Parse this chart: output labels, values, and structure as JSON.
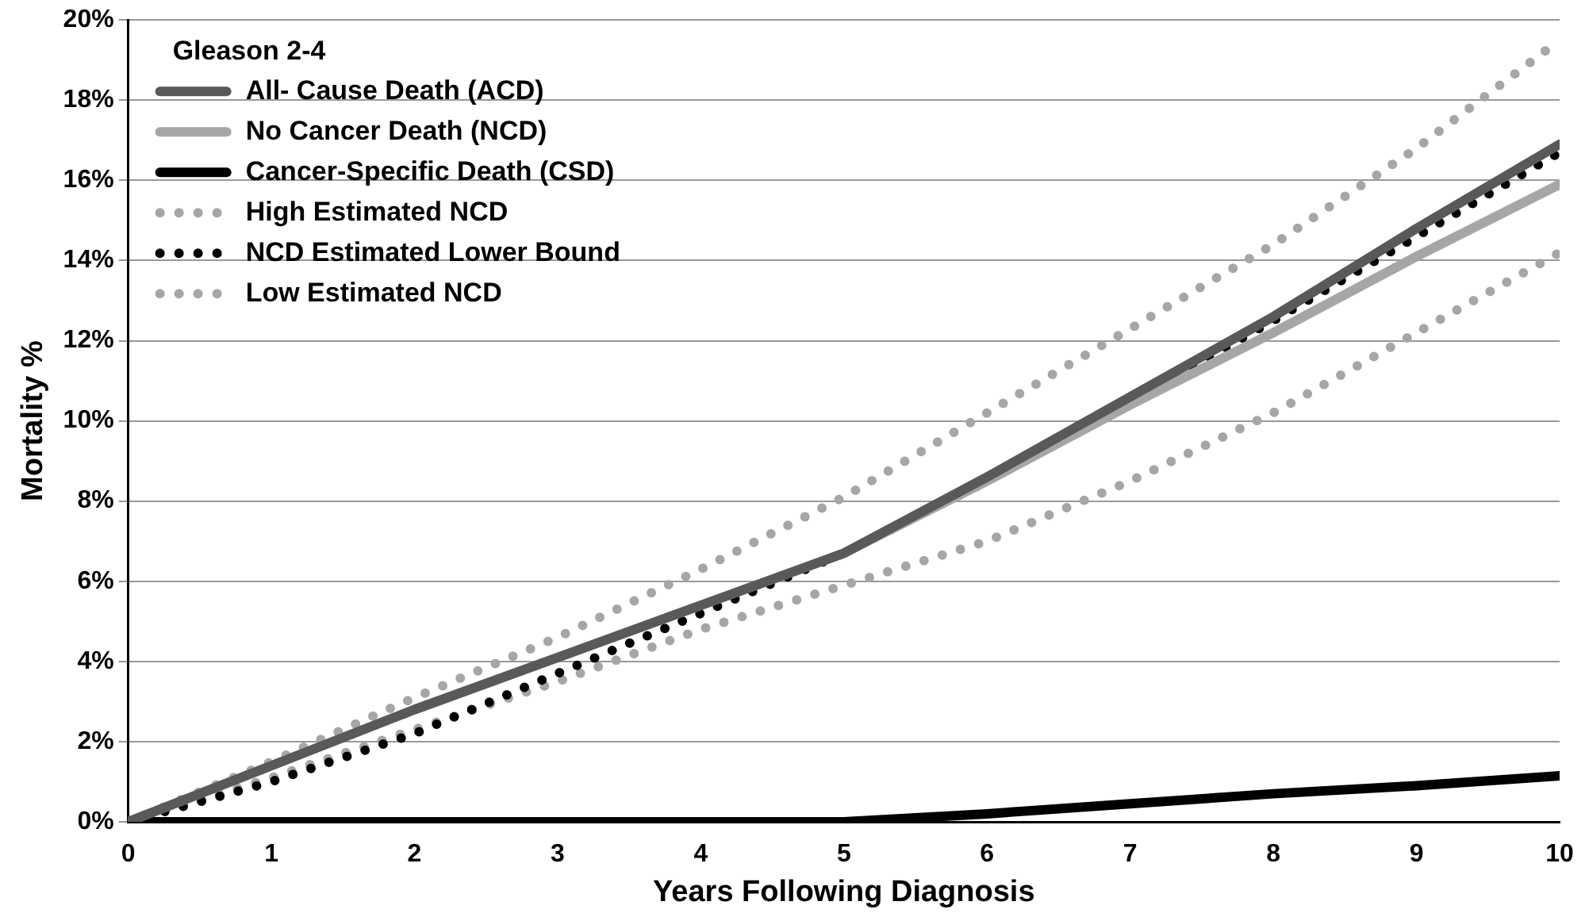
{
  "chart_data": {
    "type": "line",
    "xlabel": "Years Following Diagnosis",
    "ylabel": "Mortality %",
    "legend_title": "Gleason 2-4",
    "legend": "top left",
    "grid": "y",
    "marker": "none",
    "x": [
      0,
      1,
      2,
      3,
      4,
      5,
      6,
      7,
      8,
      9,
      10
    ],
    "xlim": [
      0,
      10
    ],
    "xticks": [
      0,
      1,
      2,
      3,
      4,
      5,
      6,
      7,
      8,
      9,
      10
    ],
    "ylim": [
      0,
      20
    ],
    "yticks": [
      {
        "value": 0,
        "label": "0%"
      },
      {
        "value": 2,
        "label": "2%"
      },
      {
        "value": 4,
        "label": "4%"
      },
      {
        "value": 6,
        "label": "6%"
      },
      {
        "value": 8,
        "label": "8%"
      },
      {
        "value": 10,
        "label": "10%"
      },
      {
        "value": 12,
        "label": "12%"
      },
      {
        "value": 14,
        "label": "14%"
      },
      {
        "value": 16,
        "label": "16%"
      },
      {
        "value": 18,
        "label": "18%"
      },
      {
        "value": 20,
        "label": "20%"
      }
    ],
    "series": [
      {
        "name": "All- Cause Death (ACD)",
        "color": "#595959",
        "line_style": "solid",
        "values": [
          0,
          1.4,
          2.8,
          4.1,
          5.4,
          6.7,
          8.6,
          10.6,
          12.6,
          14.8,
          16.9
        ]
      },
      {
        "name": "No Cancer Death (NCD)",
        "color": "#a6a6a6",
        "line_style": "solid",
        "values": [
          0,
          1.4,
          2.8,
          4.1,
          5.4,
          6.7,
          8.5,
          10.4,
          12.2,
          14.1,
          15.9
        ]
      },
      {
        "name": "Cancer-Specific Death (CSD)",
        "color": "#000000",
        "line_style": "solid",
        "values": [
          0,
          0,
          0,
          0,
          0,
          0,
          0.2,
          0.45,
          0.7,
          0.9,
          1.15
        ]
      },
      {
        "name": "High Estimated NCD",
        "color": "#a6a6a6",
        "line_style": "dotted",
        "values": [
          0,
          1.5,
          3.1,
          4.6,
          6.3,
          8.1,
          10.2,
          12.3,
          14.4,
          16.8,
          19.5
        ]
      },
      {
        "name": "NCD Estimated Lower Bound",
        "color": "#000000",
        "line_style": "dotted",
        "values": [
          0,
          1.0,
          2.2,
          3.7,
          5.2,
          6.7,
          8.5,
          10.5,
          12.5,
          14.6,
          16.7
        ]
      },
      {
        "name": "Low Estimated NCD",
        "color": "#a6a6a6",
        "line_style": "dotted",
        "values": [
          0,
          1.1,
          2.3,
          3.5,
          4.8,
          5.9,
          7.0,
          8.5,
          10.2,
          12.2,
          14.2
        ]
      }
    ]
  }
}
